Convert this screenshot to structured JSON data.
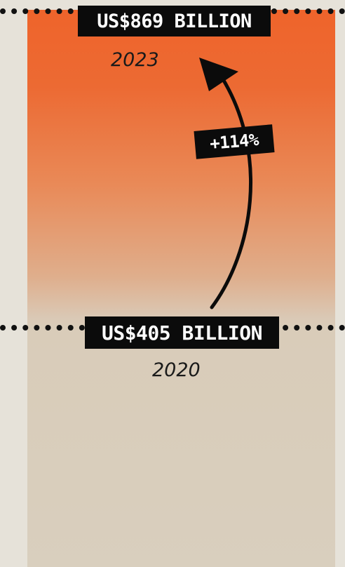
{
  "chart_data": {
    "type": "bar",
    "categories": [
      "2020",
      "2023"
    ],
    "values": [
      405,
      869
    ],
    "value_labels": [
      "US$405 BILLION",
      "US$869 BILLION"
    ],
    "change_label": "+114%",
    "colors": {
      "bar_top": "#ef642b",
      "bar_base": "#d9cfbe",
      "label_bg": "#0b0b0b",
      "label_text": "#ffffff",
      "background": "#e6e2d9"
    }
  },
  "labels": {
    "top_value": "US$869 BILLION",
    "top_year": "2023",
    "bottom_value": "US$405 BILLION",
    "bottom_year": "2020",
    "change": "+114%"
  }
}
